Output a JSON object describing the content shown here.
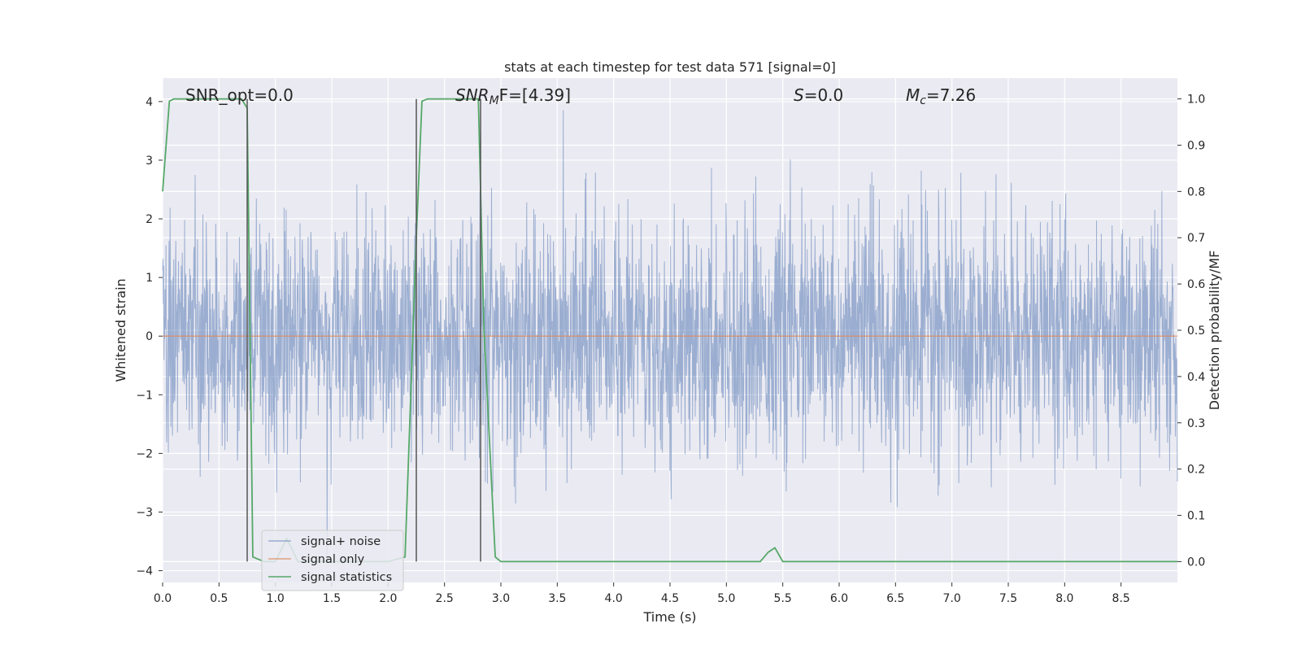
{
  "chart_data": {
    "type": "line",
    "title": "stats at each timestep for test data 571 [signal=0]",
    "xlabel": "Time (s)",
    "ylabel_left": "Whitened strain",
    "ylabel_right": "Detection probability/MF",
    "xlim": [
      0.0,
      9.0
    ],
    "ylim_left": [
      -4.2,
      4.4
    ],
    "ylim_right": [
      -0.045,
      1.045
    ],
    "x_ticks": [
      "0.0",
      "0.5",
      "1.0",
      "1.5",
      "2.0",
      "2.5",
      "3.0",
      "3.5",
      "4.0",
      "4.5",
      "5.0",
      "5.5",
      "6.0",
      "6.5",
      "7.0",
      "7.5",
      "8.0",
      "8.5"
    ],
    "y_ticks_left": [
      "4",
      "3",
      "2",
      "1",
      "0",
      "−1",
      "−2",
      "−3",
      "−4"
    ],
    "y_ticks_right": [
      "1.0",
      "0.9",
      "0.8",
      "0.7",
      "0.6",
      "0.5",
      "0.4",
      "0.3",
      "0.2",
      "0.1",
      "0.0"
    ],
    "annotations": {
      "snr_opt": "SNR_opt=0.0",
      "snr_mf_main": "SNR",
      "snr_mf_sub": "M",
      "snr_mf_rest": "F=[4.39]",
      "s_main": "S",
      "s_rest": "=0.0",
      "mc_main": "M",
      "mc_sub": "c",
      "mc_rest": "=7.26"
    },
    "series": [
      {
        "name": "signal+ noise",
        "color": "#4c72b0",
        "axis": "left",
        "description_stats": {
          "approx_std": 1.0,
          "approx_min": -3.8,
          "approx_max": 3.9
        }
      },
      {
        "name": "signal only",
        "color": "#dd8452",
        "axis": "left",
        "x": [
          0.0,
          9.0
        ],
        "y": [
          0.0,
          0.0
        ]
      },
      {
        "name": "signal statistics",
        "color": "#55a868",
        "axis": "right",
        "x": [
          0.0,
          0.06,
          0.1,
          0.3,
          0.5,
          0.6,
          0.7,
          0.75,
          0.8,
          0.9,
          1.0,
          1.1,
          1.2,
          1.5,
          2.0,
          2.15,
          2.25,
          2.3,
          2.35,
          2.45,
          2.6,
          2.8,
          2.85,
          2.95,
          3.0,
          3.5,
          4.0,
          4.5,
          5.0,
          5.3,
          5.37,
          5.43,
          5.5,
          6.0,
          7.0,
          8.0,
          9.0
        ],
        "y": [
          0.8,
          0.995,
          1.0,
          1.0,
          1.0,
          1.0,
          1.0,
          0.98,
          0.01,
          0.0,
          0.0,
          0.05,
          0.0,
          0.0,
          0.0,
          0.01,
          0.7,
          0.995,
          1.0,
          1.0,
          1.0,
          1.0,
          0.5,
          0.01,
          0.0,
          0.0,
          0.0,
          0.0,
          0.0,
          0.0,
          0.02,
          0.03,
          0.0,
          0.0,
          0.0,
          0.0,
          0.0
        ]
      }
    ],
    "vertical_lines_x": [
      0.75,
      2.25,
      2.82
    ],
    "legend": {
      "placement": "lower-left",
      "entries": [
        "signal+ noise",
        "signal only",
        "signal statistics"
      ]
    },
    "grid": true,
    "background_color": "#eaeaf2"
  }
}
